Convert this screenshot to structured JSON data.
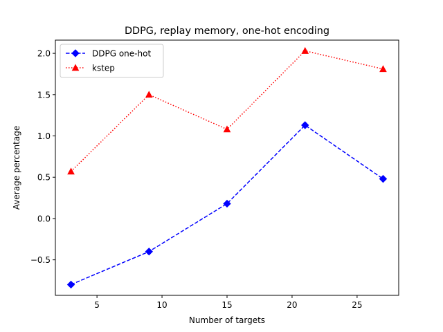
{
  "chart_data": {
    "type": "line",
    "title": "DDPG, replay memory, one-hot encoding",
    "xlabel": "Number of targets",
    "ylabel": "Average percentage",
    "xlim": [
      1.8,
      28.2
    ],
    "ylim": [
      -0.93,
      2.16
    ],
    "x_ticks": [
      5,
      10,
      15,
      20,
      25
    ],
    "x_tick_labels": [
      "5",
      "10",
      "15",
      "20",
      "25"
    ],
    "y_ticks": [
      -0.5,
      0.0,
      0.5,
      1.0,
      1.5,
      2.0
    ],
    "y_tick_labels": [
      "−0.5",
      "0.0",
      "0.5",
      "1.0",
      "1.5",
      "2.0"
    ],
    "grid": false,
    "legend_position": "upper-left",
    "x": [
      3,
      9,
      15,
      21,
      27
    ],
    "series": [
      {
        "name": "DDPG one-hot",
        "values": [
          -0.8,
          -0.4,
          0.18,
          1.13,
          0.48
        ],
        "color": "#0000ff",
        "line_style": "dashed",
        "marker": "diamond"
      },
      {
        "name": "kstep",
        "values": [
          0.57,
          1.5,
          1.08,
          2.03,
          1.81
        ],
        "color": "#ff0000",
        "line_style": "dotted",
        "marker": "triangle-up"
      }
    ]
  }
}
